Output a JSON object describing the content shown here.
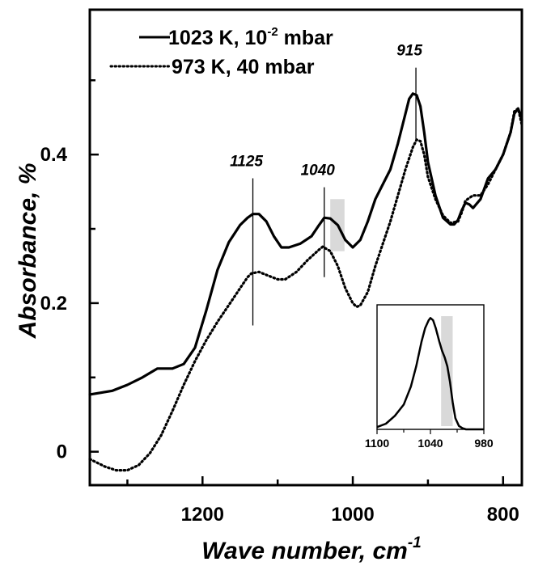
{
  "chart_data": {
    "type": "line",
    "title": "",
    "xlabel": "Wave number, cm",
    "xlabel_sup": "-1",
    "ylabel": "Absorbance, %",
    "xlim": [
      1350,
      775
    ],
    "ylim": [
      -0.045,
      0.595
    ],
    "x_reversed": true,
    "x_ticks": [
      1200,
      1000,
      800
    ],
    "x_minor_ticks": [
      1300,
      1100,
      900
    ],
    "y_ticks": [
      0,
      0.2,
      0.4
    ],
    "y_tick_labels": [
      "0",
      "0.2",
      "0.4"
    ],
    "y_minor_ticks": [
      0.1,
      0.3,
      0.5
    ],
    "grid": false,
    "legend_position": "top-left",
    "series": [
      {
        "name": "1023 K, 10",
        "name_sup": "-2",
        "name_suffix": " mbar",
        "style": "solid",
        "color": "#000000",
        "x": [
          1350,
          1320,
          1300,
          1280,
          1260,
          1240,
          1225,
          1210,
          1195,
          1180,
          1165,
          1150,
          1140,
          1133,
          1125,
          1115,
          1105,
          1095,
          1085,
          1070,
          1055,
          1045,
          1038,
          1030,
          1020,
          1010,
          1000,
          990,
          980,
          970,
          960,
          950,
          940,
          930,
          925,
          920,
          915,
          910,
          905,
          900,
          890,
          880,
          870,
          865,
          860,
          855,
          850,
          845,
          840,
          830,
          820,
          810,
          800,
          790,
          785,
          780,
          775
        ],
        "y": [
          0.077,
          0.082,
          0.09,
          0.1,
          0.112,
          0.112,
          0.118,
          0.14,
          0.19,
          0.245,
          0.282,
          0.305,
          0.315,
          0.32,
          0.32,
          0.31,
          0.29,
          0.275,
          0.275,
          0.28,
          0.29,
          0.305,
          0.315,
          0.314,
          0.305,
          0.285,
          0.275,
          0.285,
          0.31,
          0.34,
          0.36,
          0.38,
          0.415,
          0.455,
          0.475,
          0.482,
          0.48,
          0.465,
          0.43,
          0.39,
          0.345,
          0.315,
          0.306,
          0.306,
          0.312,
          0.325,
          0.335,
          0.333,
          0.328,
          0.34,
          0.368,
          0.38,
          0.4,
          0.43,
          0.455,
          0.462,
          0.447
        ]
      },
      {
        "name": "973 K, 40 mbar",
        "style": "dotted",
        "color": "#000000",
        "x": [
          1350,
          1330,
          1315,
          1300,
          1285,
          1270,
          1255,
          1240,
          1225,
          1210,
          1195,
          1180,
          1170,
          1160,
          1150,
          1140,
          1135,
          1125,
          1115,
          1100,
          1090,
          1075,
          1060,
          1045,
          1040,
          1030,
          1020,
          1010,
          1000,
          995,
          990,
          980,
          970,
          960,
          950,
          940,
          930,
          920,
          915,
          910,
          905,
          900,
          890,
          880,
          870,
          860,
          855,
          850,
          840,
          830,
          820,
          810,
          800,
          790,
          785,
          780,
          775
        ],
        "y": [
          -0.01,
          -0.02,
          -0.025,
          -0.025,
          -0.018,
          -0.002,
          0.022,
          0.055,
          0.09,
          0.122,
          0.15,
          0.175,
          0.19,
          0.205,
          0.22,
          0.235,
          0.24,
          0.242,
          0.238,
          0.232,
          0.232,
          0.242,
          0.258,
          0.272,
          0.276,
          0.27,
          0.25,
          0.22,
          0.2,
          0.195,
          0.197,
          0.215,
          0.25,
          0.28,
          0.31,
          0.345,
          0.38,
          0.41,
          0.42,
          0.418,
          0.4,
          0.37,
          0.34,
          0.318,
          0.308,
          0.31,
          0.322,
          0.338,
          0.345,
          0.345,
          0.36,
          0.38,
          0.4,
          0.43,
          0.458,
          0.462,
          0.44
        ]
      }
    ],
    "annotations": [
      {
        "text": "1125",
        "x": 1133,
        "y_top": 0.368,
        "y_bottom": 0.17
      },
      {
        "text": "1040",
        "x": 1038,
        "y_top": 0.356,
        "y_bottom": 0.235
      },
      {
        "text": "915",
        "x": 916,
        "y_top": 0.517,
        "y_bottom": 0.418
      }
    ],
    "shaded_band": {
      "x": [
        1030,
        1011
      ],
      "y": [
        0.27,
        0.34
      ],
      "color": "#d9d9d9"
    },
    "inset": {
      "type": "line",
      "xlim": [
        1100,
        980
      ],
      "x_reversed": true,
      "x_ticks": [
        1100,
        1040,
        980
      ],
      "x_minor_ticks": [
        1070,
        1010
      ],
      "ylim": [
        0,
        1.05
      ],
      "band_x": [
        1028,
        1015
      ],
      "band_color": "#d9d9d9",
      "x": [
        1100,
        1090,
        1080,
        1070,
        1062,
        1056,
        1050,
        1046,
        1042,
        1040,
        1037,
        1034,
        1030,
        1027,
        1024,
        1021,
        1018,
        1015,
        1012,
        1008,
        1004,
        1000,
        990,
        980
      ],
      "y": [
        0.02,
        0.05,
        0.12,
        0.22,
        0.38,
        0.56,
        0.78,
        0.9,
        0.97,
        0.99,
        0.97,
        0.9,
        0.78,
        0.7,
        0.64,
        0.56,
        0.42,
        0.24,
        0.1,
        0.03,
        0.01,
        0.0,
        0.0,
        0.0
      ]
    }
  }
}
